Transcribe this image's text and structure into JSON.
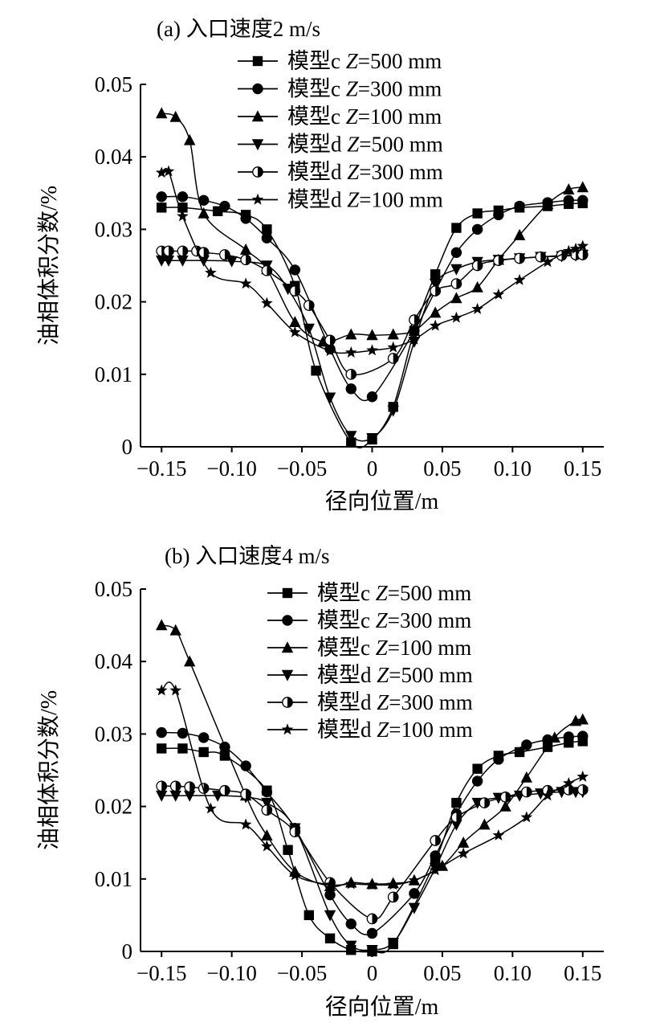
{
  "chart_data": [
    {
      "type": "line",
      "title": "(a)  入口速度2 m/s",
      "xlabel": "径向位置/m",
      "ylabel": "油相体积分数/%",
      "xlim": [
        -0.165,
        0.165
      ],
      "ylim": [
        0,
        0.05
      ],
      "xticks": [
        -0.15,
        -0.1,
        -0.05,
        0,
        0.05,
        0.1,
        0.15
      ],
      "xtick_labels": [
        "−0.15",
        "−0.10",
        "−0.05",
        "0",
        "0.05",
        "0.10",
        "0.15"
      ],
      "yticks": [
        0,
        0.01,
        0.02,
        0.03,
        0.04,
        0.05
      ],
      "ytick_labels": [
        "0",
        "0.01",
        "0.02",
        "0.03",
        "0.04",
        "0.05"
      ],
      "grid": false,
      "legend_position": "top-right",
      "series": [
        {
          "name": "模型c Z=500 mm",
          "model": "模型c",
          "zval": "=500 mm",
          "marker": "square",
          "x": [
            -0.15,
            -0.135,
            -0.11,
            -0.09,
            -0.075,
            -0.055,
            -0.04,
            -0.015,
            0,
            0.015,
            0.03,
            0.045,
            0.06,
            0.075,
            0.09,
            0.105,
            0.125,
            0.14,
            0.15
          ],
          "y": [
            0.033,
            0.033,
            0.0325,
            0.032,
            0.03,
            0.0222,
            0.0105,
            0.0006,
            0.001,
            0.0055,
            0.016,
            0.0238,
            0.0302,
            0.0322,
            0.0326,
            0.033,
            0.0332,
            0.0335,
            0.0336
          ]
        },
        {
          "name": "模型c Z=300 mm",
          "model": "模型c",
          "zval": "=300 mm",
          "marker": "circle",
          "x": [
            -0.15,
            -0.135,
            -0.12,
            -0.105,
            -0.09,
            -0.075,
            -0.055,
            -0.03,
            -0.015,
            0,
            0.03,
            0.045,
            0.06,
            0.075,
            0.09,
            0.105,
            0.125,
            0.14,
            0.15
          ],
          "y": [
            0.0345,
            0.0345,
            0.034,
            0.0332,
            0.0315,
            0.0288,
            0.0244,
            0.0135,
            0.008,
            0.0069,
            0.016,
            0.0215,
            0.0268,
            0.03,
            0.032,
            0.0332,
            0.0337,
            0.034,
            0.034
          ]
        },
        {
          "name": "模型c Z=100 mm",
          "model": "模型c",
          "zval": "=100 mm",
          "marker": "triangle-up",
          "x": [
            -0.15,
            -0.14,
            -0.13,
            -0.12,
            -0.09,
            -0.075,
            -0.055,
            -0.035,
            -0.015,
            0,
            0.015,
            0.03,
            0.045,
            0.06,
            0.075,
            0.09,
            0.105,
            0.125,
            0.14,
            0.15
          ],
          "y": [
            0.046,
            0.0455,
            0.0423,
            0.0322,
            0.0272,
            0.0245,
            0.0172,
            0.0145,
            0.0155,
            0.0154,
            0.0155,
            0.016,
            0.0185,
            0.0205,
            0.022,
            0.0258,
            0.0292,
            0.0335,
            0.0355,
            0.0358
          ]
        },
        {
          "name": "模型d Z=500 mm",
          "model": "模型d",
          "zval": "=500 mm",
          "marker": "triangle-down",
          "x": [
            -0.15,
            -0.145,
            -0.135,
            -0.12,
            -0.1,
            -0.075,
            -0.06,
            -0.045,
            -0.03,
            -0.015,
            0,
            0.015,
            0.03,
            0.045,
            0.06,
            0.075,
            0.09,
            0.105,
            0.12,
            0.135,
            0.145,
            0.15
          ],
          "y": [
            0.0257,
            0.0257,
            0.0257,
            0.0257,
            0.0256,
            0.025,
            0.0218,
            0.0163,
            0.0068,
            0.0015,
            0.0012,
            0.005,
            0.0145,
            0.0225,
            0.0245,
            0.0255,
            0.0258,
            0.026,
            0.0262,
            0.0263,
            0.0264,
            0.0265
          ]
        },
        {
          "name": "模型d Z=300 mm",
          "model": "模型d",
          "zval": "=300 mm",
          "marker": "half-circle",
          "x": [
            -0.15,
            -0.145,
            -0.135,
            -0.125,
            -0.12,
            -0.105,
            -0.09,
            -0.075,
            -0.055,
            -0.045,
            -0.03,
            -0.015,
            0.015,
            0.03,
            0.045,
            0.06,
            0.075,
            0.09,
            0.105,
            0.12,
            0.135,
            0.145,
            0.15
          ],
          "y": [
            0.027,
            0.027,
            0.027,
            0.027,
            0.0268,
            0.0265,
            0.0258,
            0.0243,
            0.0215,
            0.0195,
            0.0147,
            0.01,
            0.0122,
            0.0175,
            0.0215,
            0.0225,
            0.025,
            0.0257,
            0.026,
            0.0262,
            0.0264,
            0.0265,
            0.0265
          ]
        },
        {
          "name": "模型d Z=100 mm",
          "model": "模型d",
          "zval": "=100 mm",
          "marker": "star",
          "x": [
            -0.15,
            -0.145,
            -0.135,
            -0.115,
            -0.09,
            -0.075,
            -0.055,
            -0.03,
            -0.015,
            0,
            0.015,
            0.03,
            0.045,
            0.06,
            0.075,
            0.09,
            0.105,
            0.125,
            0.14,
            0.145,
            0.15
          ],
          "y": [
            0.0378,
            0.038,
            0.0318,
            0.024,
            0.0225,
            0.0198,
            0.0158,
            0.0132,
            0.013,
            0.0133,
            0.0137,
            0.0148,
            0.0167,
            0.0178,
            0.019,
            0.021,
            0.023,
            0.0255,
            0.027,
            0.0273,
            0.0277
          ]
        }
      ]
    },
    {
      "type": "line",
      "title": "(b)  入口速度4 m/s",
      "xlabel": "径向位置/m",
      "ylabel": "油相体积分数/%",
      "xlim": [
        -0.165,
        0.165
      ],
      "ylim": [
        0,
        0.05
      ],
      "xticks": [
        -0.15,
        -0.1,
        -0.05,
        0,
        0.05,
        0.1,
        0.15
      ],
      "xtick_labels": [
        "−0.15",
        "−0.10",
        "−0.05",
        "0",
        "0.05",
        "0.10",
        "0.15"
      ],
      "yticks": [
        0,
        0.01,
        0.02,
        0.03,
        0.04,
        0.05
      ],
      "ytick_labels": [
        "0",
        "0.01",
        "0.02",
        "0.03",
        "0.04",
        "0.05"
      ],
      "grid": false,
      "legend_position": "top-right",
      "series": [
        {
          "name": "模型c Z=500 mm",
          "model": "模型c",
          "zval": "=500 mm",
          "marker": "square",
          "x": [
            -0.15,
            -0.135,
            -0.12,
            -0.105,
            -0.075,
            -0.06,
            -0.045,
            -0.03,
            -0.015,
            0,
            0.015,
            0.045,
            0.06,
            0.075,
            0.09,
            0.105,
            0.125,
            0.14,
            0.15
          ],
          "y": [
            0.028,
            0.028,
            0.0275,
            0.027,
            0.0222,
            0.014,
            0.005,
            0.0018,
            0.0002,
            0.0,
            0.001,
            0.0125,
            0.0205,
            0.0252,
            0.027,
            0.0275,
            0.0282,
            0.0288,
            0.029
          ]
        },
        {
          "name": "模型c Z=300 mm",
          "model": "模型c",
          "zval": "=300 mm",
          "marker": "circle",
          "x": [
            -0.15,
            -0.135,
            -0.12,
            -0.105,
            -0.09,
            -0.075,
            -0.055,
            -0.03,
            -0.015,
            0,
            0.03,
            0.045,
            0.06,
            0.075,
            0.09,
            0.11,
            0.125,
            0.14,
            0.15
          ],
          "y": [
            0.0302,
            0.0301,
            0.0295,
            0.0282,
            0.0256,
            0.022,
            0.017,
            0.0078,
            0.0038,
            0.0025,
            0.008,
            0.0132,
            0.019,
            0.0235,
            0.0265,
            0.0285,
            0.0292,
            0.0296,
            0.0297
          ]
        },
        {
          "name": "模型c Z=100 mm",
          "model": "模型c",
          "zval": "=100 mm",
          "marker": "triangle-up",
          "x": [
            -0.15,
            -0.14,
            -0.13,
            -0.09,
            -0.075,
            -0.055,
            -0.03,
            -0.015,
            0,
            0.015,
            0.03,
            0.05,
            0.065,
            0.08,
            0.095,
            0.11,
            0.13,
            0.145,
            0.15
          ],
          "y": [
            0.045,
            0.0443,
            0.04,
            0.0215,
            0.016,
            0.011,
            0.009,
            0.0095,
            0.0093,
            0.0094,
            0.0098,
            0.0118,
            0.015,
            0.0175,
            0.02,
            0.024,
            0.0295,
            0.0318,
            0.032
          ]
        },
        {
          "name": "模型d Z=500 mm",
          "model": "模型d",
          "zval": "=500 mm",
          "marker": "triangle-down",
          "x": [
            -0.15,
            -0.14,
            -0.13,
            -0.11,
            -0.09,
            -0.075,
            -0.055,
            -0.03,
            -0.015,
            0,
            0.015,
            0.03,
            0.045,
            0.06,
            0.075,
            0.09,
            0.105,
            0.12,
            0.135,
            0.145,
            0.15
          ],
          "y": [
            0.0215,
            0.0215,
            0.0215,
            0.0215,
            0.0213,
            0.0205,
            0.017,
            0.005,
            0.0008,
            0.0002,
            0.0012,
            0.006,
            0.0115,
            0.0175,
            0.0205,
            0.0212,
            0.0215,
            0.0218,
            0.022,
            0.022,
            0.022
          ]
        },
        {
          "name": "模型d Z=300 mm",
          "model": "模型d",
          "zval": "=300 mm",
          "marker": "half-circle",
          "x": [
            -0.15,
            -0.14,
            -0.13,
            -0.12,
            -0.105,
            -0.09,
            -0.075,
            -0.055,
            -0.03,
            0,
            0.015,
            0.045,
            0.06,
            0.08,
            0.095,
            0.11,
            0.125,
            0.14,
            0.15
          ],
          "y": [
            0.0228,
            0.0228,
            0.0227,
            0.0225,
            0.0222,
            0.0217,
            0.0195,
            0.0165,
            0.0095,
            0.0045,
            0.0075,
            0.0153,
            0.0185,
            0.0205,
            0.0213,
            0.022,
            0.0222,
            0.0223,
            0.0223
          ]
        },
        {
          "name": "模型d Z=100 mm",
          "model": "模型d",
          "zval": "=100 mm",
          "marker": "star",
          "x": [
            -0.15,
            -0.14,
            -0.115,
            -0.09,
            -0.075,
            -0.055,
            -0.03,
            -0.015,
            0,
            0.015,
            0.03,
            0.045,
            0.065,
            0.09,
            0.11,
            0.125,
            0.14,
            0.15
          ],
          "y": [
            0.036,
            0.036,
            0.0197,
            0.0175,
            0.0145,
            0.0105,
            0.0092,
            0.0093,
            0.0092,
            0.0092,
            0.0098,
            0.0112,
            0.0135,
            0.016,
            0.0185,
            0.0215,
            0.0232,
            0.0241
          ]
        }
      ]
    }
  ]
}
